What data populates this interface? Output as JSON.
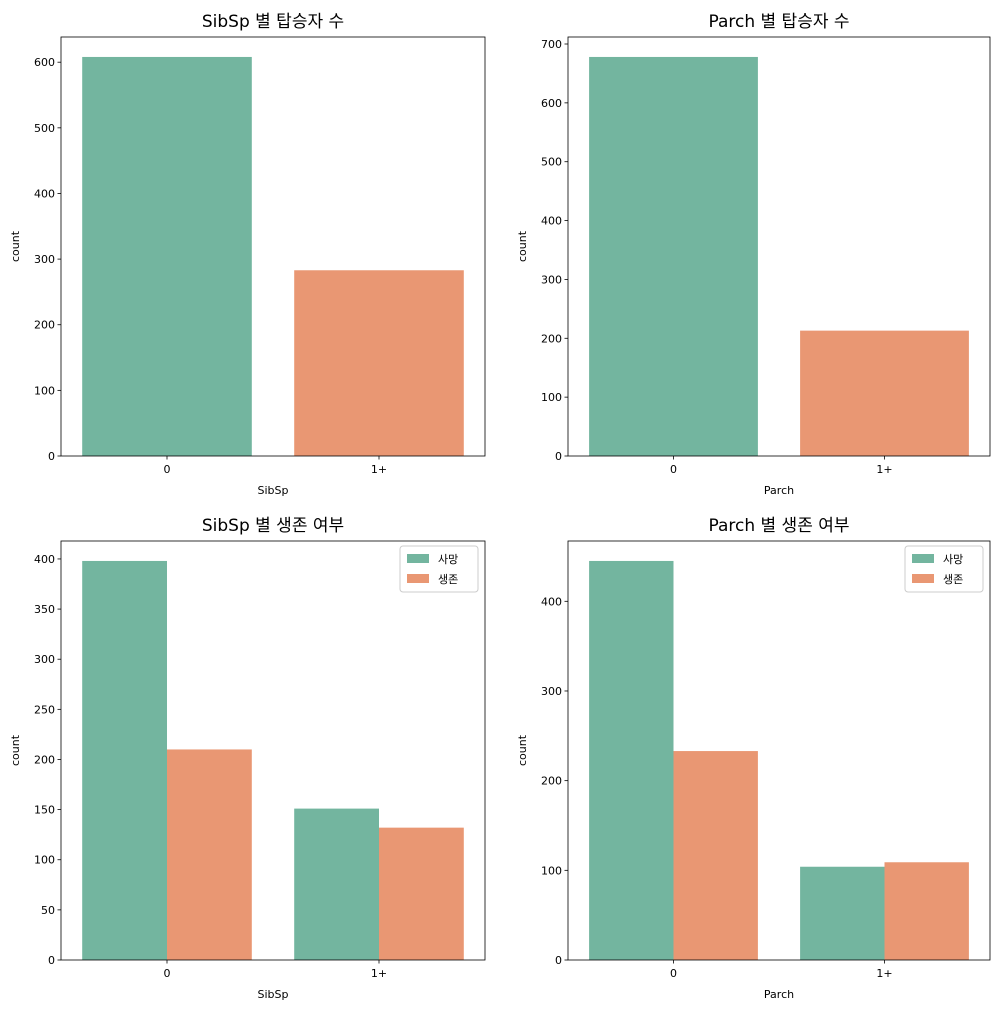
{
  "colors": {
    "died": "#73b59f",
    "survived": "#e99773"
  },
  "chart_data": [
    {
      "type": "bar",
      "title": "SibSp 별 탑승자 수",
      "xlabel": "SibSp",
      "ylabel": "count",
      "categories": [
        "0",
        "1+"
      ],
      "series": [
        {
          "values": [
            608,
            283
          ],
          "colors": [
            "#73b59f",
            "#e99773"
          ]
        }
      ],
      "ylim": [
        0,
        638.4
      ],
      "yticks": [
        0,
        100,
        200,
        300,
        400,
        500,
        600
      ],
      "grid": false
    },
    {
      "type": "bar",
      "title": "Parch 별 탑승자 수",
      "xlabel": "Parch",
      "ylabel": "count",
      "categories": [
        "0",
        "1+"
      ],
      "series": [
        {
          "values": [
            678,
            213
          ],
          "colors": [
            "#73b59f",
            "#e99773"
          ]
        }
      ],
      "ylim": [
        0,
        711.9
      ],
      "yticks": [
        0,
        100,
        200,
        300,
        400,
        500,
        600,
        700
      ],
      "grid": false
    },
    {
      "type": "bar",
      "title": "SibSp 별 생존 여부",
      "xlabel": "SibSp",
      "ylabel": "count",
      "categories": [
        "0",
        "1+"
      ],
      "series": [
        {
          "name": "사망",
          "values": [
            398,
            151
          ],
          "color": "#73b59f"
        },
        {
          "name": "생존",
          "values": [
            210,
            132
          ],
          "color": "#e99773"
        }
      ],
      "ylim": [
        0,
        417.9
      ],
      "yticks": [
        0,
        50,
        100,
        150,
        200,
        250,
        300,
        350,
        400
      ],
      "legend": "top-right",
      "grid": false
    },
    {
      "type": "bar",
      "title": "Parch 별 생존 여부",
      "xlabel": "Parch",
      "ylabel": "count",
      "categories": [
        "0",
        "1+"
      ],
      "series": [
        {
          "name": "사망",
          "values": [
            445,
            104
          ],
          "color": "#73b59f"
        },
        {
          "name": "생존",
          "values": [
            233,
            109
          ],
          "color": "#e99773"
        }
      ],
      "ylim": [
        0,
        467.25
      ],
      "yticks": [
        0,
        100,
        200,
        300,
        400
      ],
      "legend": "top-right",
      "grid": false
    }
  ]
}
